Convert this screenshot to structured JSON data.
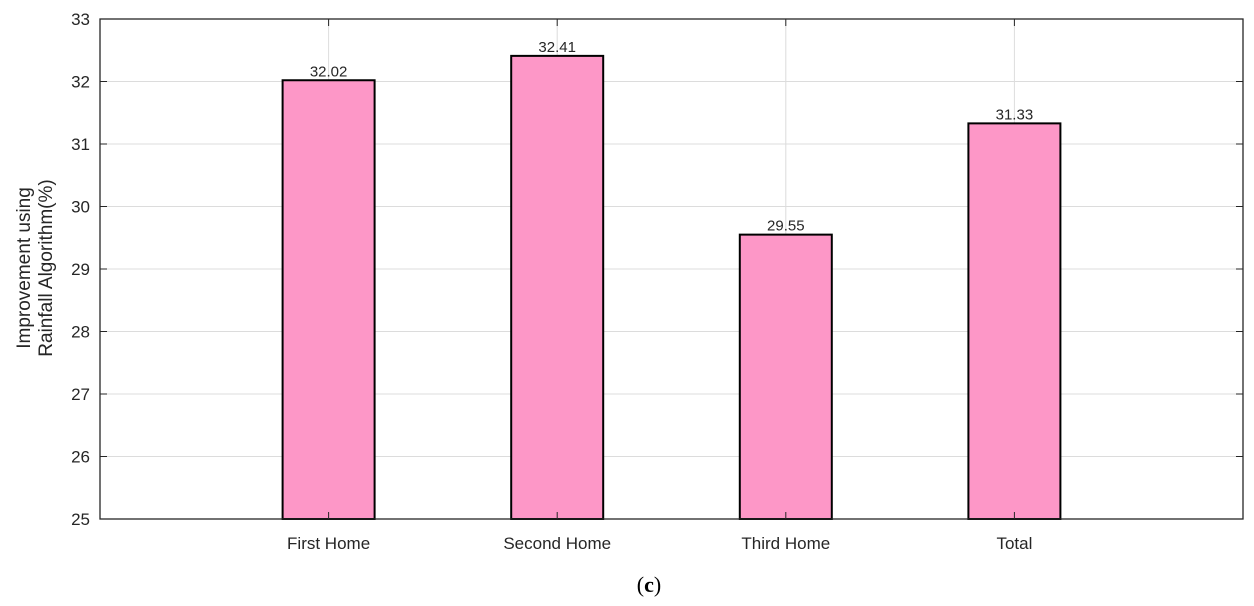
{
  "chart_data": {
    "type": "bar",
    "categories": [
      "First Home",
      "Second Home",
      "Third Home",
      "Total"
    ],
    "values": [
      32.02,
      32.41,
      29.55,
      31.33
    ],
    "value_labels": [
      "32.02",
      "32.41",
      "29.55",
      "31.33"
    ],
    "ylabel_lines": [
      "Improvement using",
      "Rainfall Algorithm(%)"
    ],
    "xlabel": "",
    "ylim": [
      25,
      33
    ],
    "yticks": [
      25,
      26,
      27,
      28,
      29,
      30,
      31,
      32,
      33
    ],
    "grid": true,
    "bar_color": "#fd97c7",
    "bar_edge_color": "#000000",
    "grid_color": "#dcdcdc"
  },
  "caption": {
    "open": "(",
    "letter": "c",
    "close": ")"
  }
}
